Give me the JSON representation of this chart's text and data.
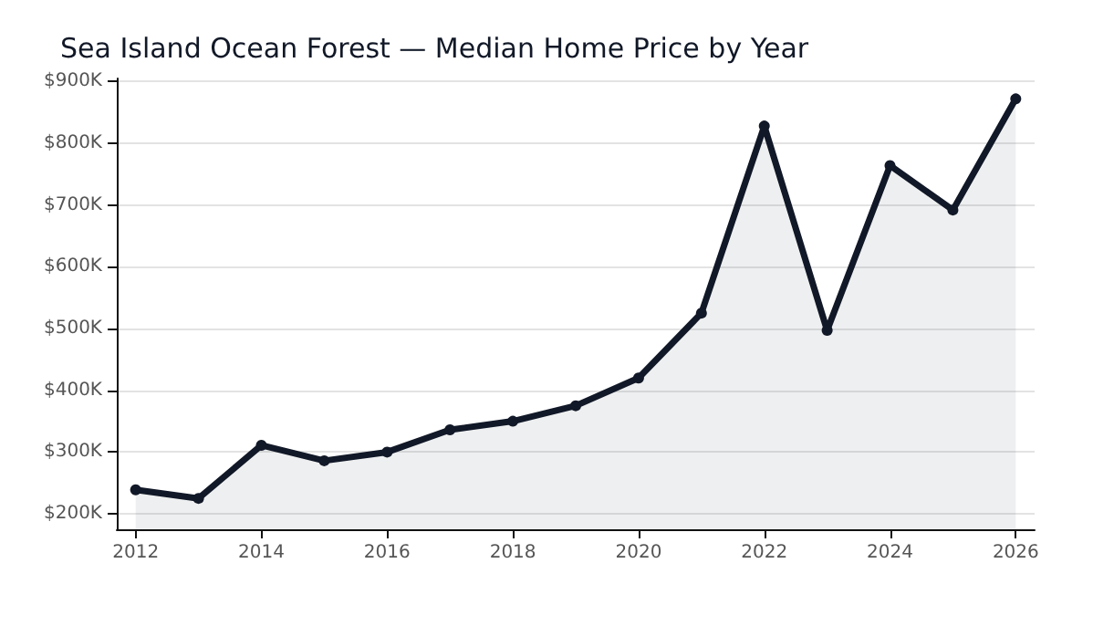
{
  "chart_data": {
    "type": "area",
    "title": "Sea Island Ocean Forest — Median Home Price by Year",
    "x": [
      2012,
      2013,
      2014,
      2015,
      2016,
      2017,
      2018,
      2019,
      2020,
      2021,
      2022,
      2023,
      2024,
      2025,
      2026
    ],
    "series": [
      {
        "color": "#111827",
        "values": [
          239000,
          225000,
          311000,
          286000,
          300000,
          336000,
          350000,
          375000,
          420000,
          525000,
          828000,
          497000,
          764000,
          692000,
          872000
        ]
      }
    ],
    "xlim": [
      2011.7,
      2026.3
    ],
    "xticks": [
      2012,
      2014,
      2016,
      2018,
      2020,
      2022,
      2024,
      2026
    ],
    "ylim": [
      175000,
      905000
    ],
    "yticks": [
      {
        "value": 200000,
        "label": "$200K"
      },
      {
        "value": 300000,
        "label": "$300K"
      },
      {
        "value": 400000,
        "label": "$400K"
      },
      {
        "value": 500000,
        "label": "$500K"
      },
      {
        "value": 600000,
        "label": "$600K"
      },
      {
        "value": 700000,
        "label": "$700K"
      },
      {
        "value": 800000,
        "label": "$800K"
      },
      {
        "value": 900000,
        "label": "$900K"
      }
    ],
    "grid": "y",
    "marker": "circle",
    "line_style": "solid"
  }
}
